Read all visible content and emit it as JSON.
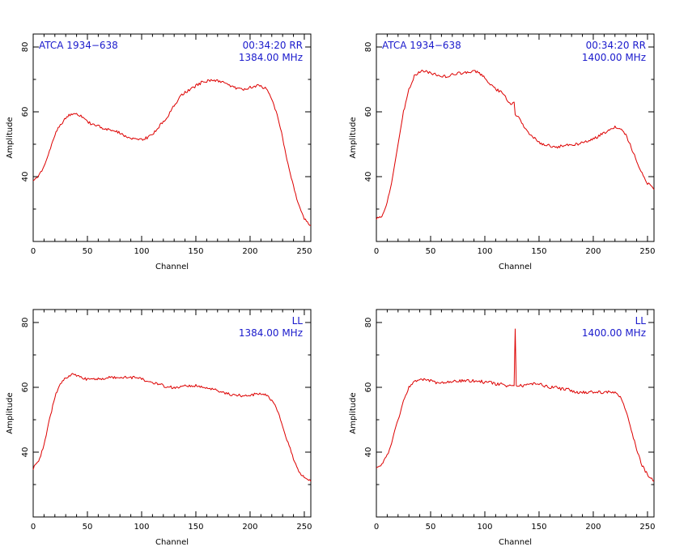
{
  "colors": {
    "trace": "#dd0000",
    "annotation": "#1a1acc",
    "axes": "#000000"
  },
  "chart_data": [
    {
      "type": "line",
      "xlabel": "Channel",
      "ylabel": "Amplitude",
      "xlim": [
        0,
        256
      ],
      "ylim": [
        20,
        84
      ],
      "xticks": [
        "0",
        "50",
        "100",
        "150",
        "200",
        "250"
      ],
      "yticks": [
        "40",
        "60",
        "80"
      ],
      "annotation_left": "ATCA 1934−638",
      "annotation_right": [
        "00:34:20  RR",
        "1384.00  MHz"
      ],
      "series": [
        {
          "x": [
            0,
            5,
            10,
            15,
            20,
            25,
            30,
            35,
            40,
            45,
            50,
            55,
            60,
            65,
            70,
            75,
            80,
            85,
            90,
            95,
            100,
            105,
            110,
            115,
            120,
            125,
            130,
            135,
            140,
            145,
            150,
            155,
            160,
            165,
            170,
            175,
            180,
            185,
            190,
            195,
            200,
            205,
            210,
            215,
            220,
            225,
            230,
            235,
            240,
            245,
            250,
            256
          ],
          "y": [
            39,
            40,
            43,
            48,
            53,
            56,
            58,
            59.5,
            59.5,
            58.5,
            57,
            56,
            55.5,
            55,
            54.5,
            54,
            53.5,
            52.5,
            52,
            51.5,
            51.5,
            52,
            53,
            55,
            57,
            59,
            62,
            64.5,
            66,
            67,
            68,
            69,
            69.5,
            70,
            69.5,
            69,
            68.5,
            67.5,
            67,
            67,
            67.5,
            68,
            68,
            67,
            64,
            59,
            52,
            44,
            37,
            31,
            27,
            25
          ]
        }
      ]
    },
    {
      "type": "line",
      "xlabel": "Channel",
      "ylabel": "Amplitude",
      "xlim": [
        0,
        256
      ],
      "ylim": [
        20,
        84
      ],
      "xticks": [
        "0",
        "50",
        "100",
        "150",
        "200",
        "250"
      ],
      "yticks": [
        "40",
        "60",
        "80"
      ],
      "annotation_left": "ATCA 1934−638",
      "annotation_right": [
        "00:34:20  RR",
        "1400.00  MHz"
      ],
      "series": [
        {
          "x": [
            0,
            5,
            10,
            15,
            20,
            25,
            30,
            35,
            40,
            45,
            50,
            55,
            60,
            65,
            70,
            75,
            80,
            85,
            90,
            95,
            100,
            105,
            110,
            115,
            120,
            125,
            127,
            128,
            130,
            135,
            140,
            145,
            150,
            155,
            160,
            165,
            170,
            175,
            180,
            185,
            190,
            195,
            200,
            205,
            210,
            215,
            220,
            225,
            230,
            235,
            240,
            245,
            250,
            256
          ],
          "y": [
            27,
            28,
            32,
            40,
            50,
            60,
            67,
            71,
            72.5,
            72.5,
            72,
            71.5,
            71,
            71,
            71.5,
            72,
            72,
            72,
            72.5,
            72,
            70.5,
            68.5,
            67,
            66,
            64,
            62,
            63,
            59,
            59,
            56,
            53.5,
            52,
            50.5,
            50,
            49.5,
            49,
            49.5,
            49.5,
            50,
            50,
            50.5,
            51,
            51.5,
            52.5,
            53.5,
            54.5,
            55.5,
            55,
            53,
            49,
            45,
            41,
            38,
            36
          ]
        }
      ]
    },
    {
      "type": "line",
      "xlabel": "Channel",
      "ylabel": "Amplitude",
      "xlim": [
        0,
        256
      ],
      "ylim": [
        20,
        84
      ],
      "xticks": [
        "0",
        "50",
        "100",
        "150",
        "200",
        "250"
      ],
      "yticks": [
        "40",
        "60",
        "80"
      ],
      "annotation_left": "",
      "annotation_right": [
        "LL",
        "1384.00  MHz"
      ],
      "series": [
        {
          "x": [
            0,
            5,
            10,
            15,
            20,
            25,
            30,
            35,
            40,
            45,
            50,
            55,
            60,
            65,
            70,
            75,
            80,
            85,
            90,
            95,
            100,
            105,
            110,
            115,
            120,
            125,
            130,
            135,
            140,
            145,
            150,
            155,
            160,
            165,
            170,
            175,
            180,
            185,
            190,
            195,
            200,
            205,
            210,
            215,
            220,
            225,
            230,
            235,
            240,
            245,
            250,
            256
          ],
          "y": [
            35,
            37,
            42,
            50,
            57,
            61,
            63,
            64,
            63.5,
            63,
            62.5,
            62.5,
            62.5,
            62.5,
            63,
            63,
            63,
            63,
            63,
            63,
            62.5,
            62,
            61.5,
            61,
            60.5,
            60,
            60,
            60,
            60.5,
            60.5,
            60.5,
            60,
            60,
            59.5,
            59,
            58.5,
            58,
            57.5,
            57.5,
            57.5,
            57.5,
            58,
            58,
            57.5,
            56,
            53,
            48,
            43,
            38,
            34,
            32,
            31
          ]
        }
      ]
    },
    {
      "type": "line",
      "xlabel": "Channel",
      "ylabel": "Amplitude",
      "xlim": [
        0,
        256
      ],
      "ylim": [
        20,
        84
      ],
      "xticks": [
        "0",
        "50",
        "100",
        "150",
        "200",
        "250"
      ],
      "yticks": [
        "40",
        "60",
        "80"
      ],
      "annotation_left": "",
      "annotation_right": [
        "LL",
        "1400.00  MHz"
      ],
      "series": [
        {
          "x": [
            0,
            5,
            10,
            15,
            20,
            25,
            30,
            35,
            40,
            45,
            50,
            55,
            60,
            65,
            70,
            75,
            80,
            85,
            90,
            95,
            100,
            105,
            110,
            115,
            120,
            125,
            127,
            128,
            129,
            130,
            135,
            140,
            145,
            150,
            155,
            160,
            165,
            170,
            175,
            180,
            185,
            190,
            195,
            200,
            205,
            210,
            215,
            220,
            225,
            230,
            235,
            240,
            245,
            250,
            256
          ],
          "y": [
            35,
            36,
            39,
            44,
            50,
            56,
            60,
            62,
            62.5,
            62.5,
            62,
            61.5,
            61.5,
            61.5,
            62,
            62,
            62,
            62,
            62,
            62,
            61.5,
            61.5,
            61,
            61,
            60.5,
            60.5,
            60.5,
            78,
            60.5,
            60.5,
            60.5,
            61,
            61,
            61,
            60.5,
            60,
            60,
            59.5,
            59.5,
            59,
            58.5,
            58.5,
            58.5,
            58.5,
            58.5,
            58.5,
            58.5,
            58.5,
            57,
            53,
            47,
            41,
            36,
            33,
            31
          ]
        }
      ]
    }
  ]
}
